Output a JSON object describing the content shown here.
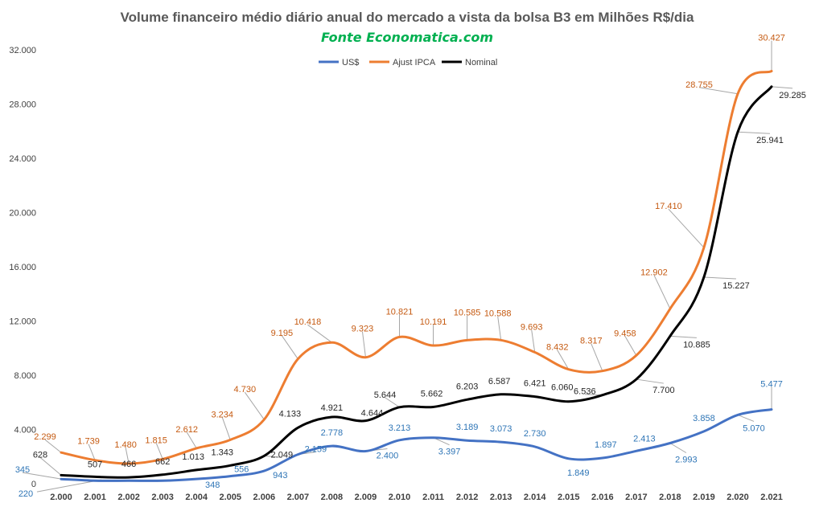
{
  "chart_data": {
    "type": "line",
    "title": "Volume financeiro médio diário anual do mercado a vista da bolsa B3 em Milhões R$/dia",
    "subtitle": "Fonte Economatica.com",
    "x": [
      "2.000",
      "2.001",
      "2.002",
      "2.003",
      "2.004",
      "2.005",
      "2.006",
      "2.007",
      "2.008",
      "2.009",
      "2.010",
      "2.011",
      "2.012",
      "2.013",
      "2.014",
      "2.015",
      "2.016",
      "2.017",
      "2.018",
      "2.019",
      "2.020",
      "2.021"
    ],
    "y_ticks": [
      "0",
      "4.000",
      "8.000",
      "12.000",
      "16.000",
      "20.000",
      "24.000",
      "28.000",
      "32.000"
    ],
    "ylim": [
      0,
      32000
    ],
    "grid": false,
    "legend_position": "top-center",
    "series": [
      {
        "name": "US$",
        "color": "#4472C4",
        "label_color": "#2E75B6",
        "values": [
          345,
          220,
          220,
          220,
          348,
          556,
          943,
          2159,
          2778,
          2400,
          3213,
          3397,
          3189,
          3073,
          2730,
          1849,
          1897,
          2413,
          2993,
          3858,
          5070,
          5477
        ],
        "labels": [
          "345",
          "",
          "",
          "",
          "348",
          "556",
          "943",
          "2.159",
          "2.778",
          "2.400",
          "3.213",
          "3.397",
          "3.189",
          "3.073",
          "2.730",
          "1.849",
          "1.897",
          "2.413",
          "2.993",
          "3.858",
          "5.070",
          "5.477"
        ],
        "extra_label": "220"
      },
      {
        "name": "Ajust IPCA",
        "color": "#ED7D31",
        "label_color": "#C55A11",
        "values": [
          2299,
          1739,
          1480,
          1815,
          2612,
          3234,
          4730,
          9195,
          10418,
          9323,
          10821,
          10191,
          10585,
          10588,
          9693,
          8432,
          8317,
          9458,
          12902,
          17410,
          28755,
          30427
        ],
        "labels": [
          "2.299",
          "1.739",
          "1.480",
          "1.815",
          "2.612",
          "3.234",
          "4.730",
          "9.195",
          "10.418",
          "9.323",
          "10.821",
          "10.191",
          "10.585",
          "10.588",
          "9.693",
          "8.432",
          "8.317",
          "9.458",
          "12.902",
          "17.410",
          "28.755",
          "30.427"
        ]
      },
      {
        "name": "Nominal",
        "color": "#000000",
        "label_color": "#262626",
        "values": [
          628,
          507,
          466,
          662,
          1013,
          1343,
          2049,
          4133,
          4921,
          4644,
          5644,
          5662,
          6203,
          6587,
          6421,
          6060,
          6536,
          7700,
          10885,
          15227,
          25941,
          29285
        ],
        "labels": [
          "628",
          "507",
          "466",
          "662",
          "1.013",
          "1.343",
          "2.049",
          "4.133",
          "4.921",
          "4.644",
          "5.644",
          "5.662",
          "6.203",
          "6.587",
          "6.421",
          "6.060",
          "6.536",
          "7.700",
          "10.885",
          "15.227",
          "25.941",
          "29.285"
        ]
      }
    ]
  }
}
